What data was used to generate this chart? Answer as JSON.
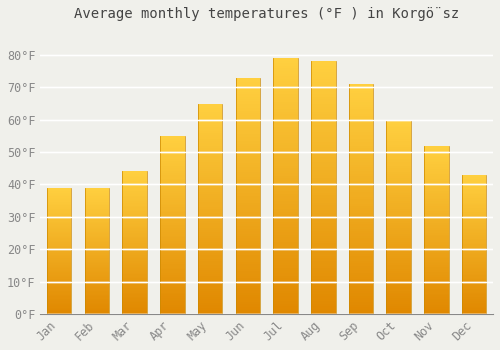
{
  "title": "Average monthly temperatures (°F ) in Korgö̈sz",
  "months": [
    "Jan",
    "Feb",
    "Mar",
    "Apr",
    "May",
    "Jun",
    "Jul",
    "Aug",
    "Sep",
    "Oct",
    "Nov",
    "Dec"
  ],
  "values": [
    39,
    39,
    44,
    55,
    65,
    73,
    79,
    78,
    71,
    60,
    52,
    43
  ],
  "bar_color_main": "#F5A800",
  "bar_color_light": "#FFD966",
  "bar_color_dark": "#E08800",
  "yticks": [
    0,
    10,
    20,
    30,
    40,
    50,
    60,
    70,
    80
  ],
  "ylabel_suffix": "°F",
  "ylim": [
    0,
    88
  ],
  "background_color": "#f0f0eb",
  "grid_color": "#ffffff",
  "title_fontsize": 10,
  "tick_fontsize": 8.5,
  "tick_color": "#888888"
}
